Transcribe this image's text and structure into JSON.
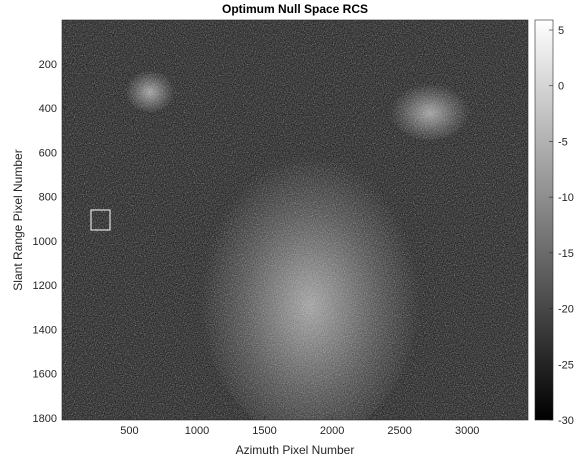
{
  "chart_data": {
    "type": "image",
    "title": "Optimum Null Space RCS",
    "x_label": "Azimuth Pixel Number",
    "y_label": "Slant Range Pixel Number",
    "xlim": [
      1,
      3450
    ],
    "xticks": [
      500,
      1000,
      1500,
      2000,
      2500,
      3000
    ],
    "ylim": [
      1,
      1810
    ],
    "yticks": [
      200,
      400,
      600,
      800,
      1000,
      1200,
      1400,
      1600,
      1800
    ],
    "y_reversed": true,
    "colorbar": {
      "lim": [
        -30,
        5.9
      ],
      "ticks": [
        5,
        0,
        -5,
        -10,
        -15,
        -20,
        -25,
        -30
      ],
      "colormap": "gray"
    }
  }
}
